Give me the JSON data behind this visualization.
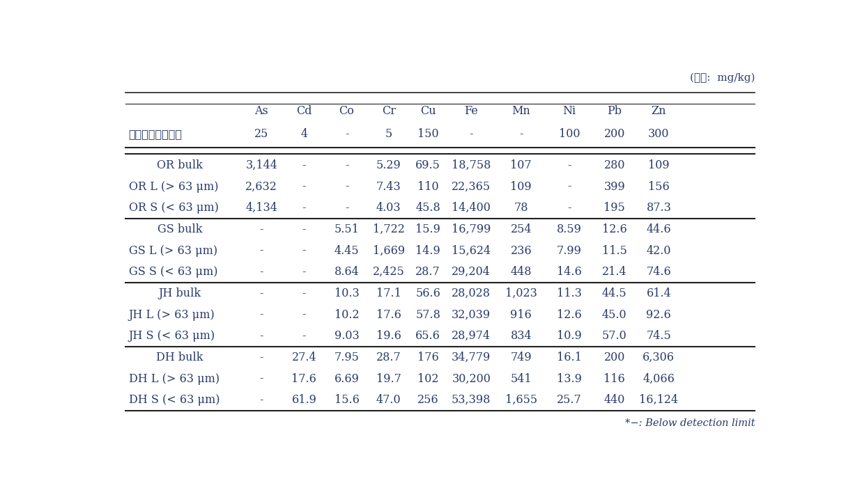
{
  "unit_label": "(단위:  mg/kg)",
  "col_headers": [
    "As",
    "Cd",
    "Co",
    "Cr",
    "Cu",
    "Fe",
    "Mn",
    "Ni",
    "Pb",
    "Zn"
  ],
  "standard_row_label": "토양오염우려기준",
  "standard_values": [
    "25",
    "4",
    "-",
    "5",
    "150",
    "-",
    "-",
    "100",
    "200",
    "300"
  ],
  "rows": [
    [
      "OR bulk",
      "3,144",
      "-",
      "-",
      "5.29",
      "69.5",
      "18,758",
      "107",
      "-",
      "280",
      "109"
    ],
    [
      "OR L (> 63 μm)",
      "2,632",
      "-",
      "-",
      "7.43",
      "110",
      "22,365",
      "109",
      "-",
      "399",
      "156"
    ],
    [
      "OR S (< 63 μm)",
      "4,134",
      "-",
      "-",
      "4.03",
      "45.8",
      "14,400",
      "78",
      "-",
      "195",
      "87.3"
    ],
    [
      "GS bulk",
      "-",
      "-",
      "5.51",
      "1,722",
      "15.9",
      "16,799",
      "254",
      "8.59",
      "12.6",
      "44.6"
    ],
    [
      "GS L (> 63 μm)",
      "-",
      "-",
      "4.45",
      "1,669",
      "14.9",
      "15,624",
      "236",
      "7.99",
      "11.5",
      "42.0"
    ],
    [
      "GS S (< 63 μm)",
      "-",
      "-",
      "8.64",
      "2,425",
      "28.7",
      "29,204",
      "448",
      "14.6",
      "21.4",
      "74.6"
    ],
    [
      "JH bulk",
      "-",
      "-",
      "10.3",
      "17.1",
      "56.6",
      "28,028",
      "1,023",
      "11.3",
      "44.5",
      "61.4"
    ],
    [
      "JH L (> 63 μm)",
      "-",
      "-",
      "10.2",
      "17.6",
      "57.8",
      "32,039",
      "916",
      "12.6",
      "45.0",
      "92.6"
    ],
    [
      "JH S (< 63 μm)",
      "-",
      "-",
      "9.03",
      "19.6",
      "65.6",
      "28,974",
      "834",
      "10.9",
      "57.0",
      "74.5"
    ],
    [
      "DH bulk",
      "-",
      "27.4",
      "7.95",
      "28.7",
      "176",
      "34,779",
      "749",
      "16.1",
      "200",
      "6,306"
    ],
    [
      "DH L (> 63 μm)",
      "-",
      "17.6",
      "6.69",
      "19.7",
      "102",
      "30,200",
      "541",
      "13.9",
      "116",
      "4,066"
    ],
    [
      "DH S (< 63 μm)",
      "-",
      "61.9",
      "15.6",
      "47.0",
      "256",
      "53,398",
      "1,655",
      "25.7",
      "440",
      "16,124"
    ]
  ],
  "footnote": "*−: Below detection limit",
  "group_separators_after": [
    2,
    5,
    8
  ],
  "bulk_rows": [
    0,
    3,
    6,
    9
  ],
  "text_color": "#2b3a6b",
  "line_color": "#222222",
  "bg_color": "#ffffff",
  "font_size": 11.5,
  "footnote_font_size": 10.5
}
